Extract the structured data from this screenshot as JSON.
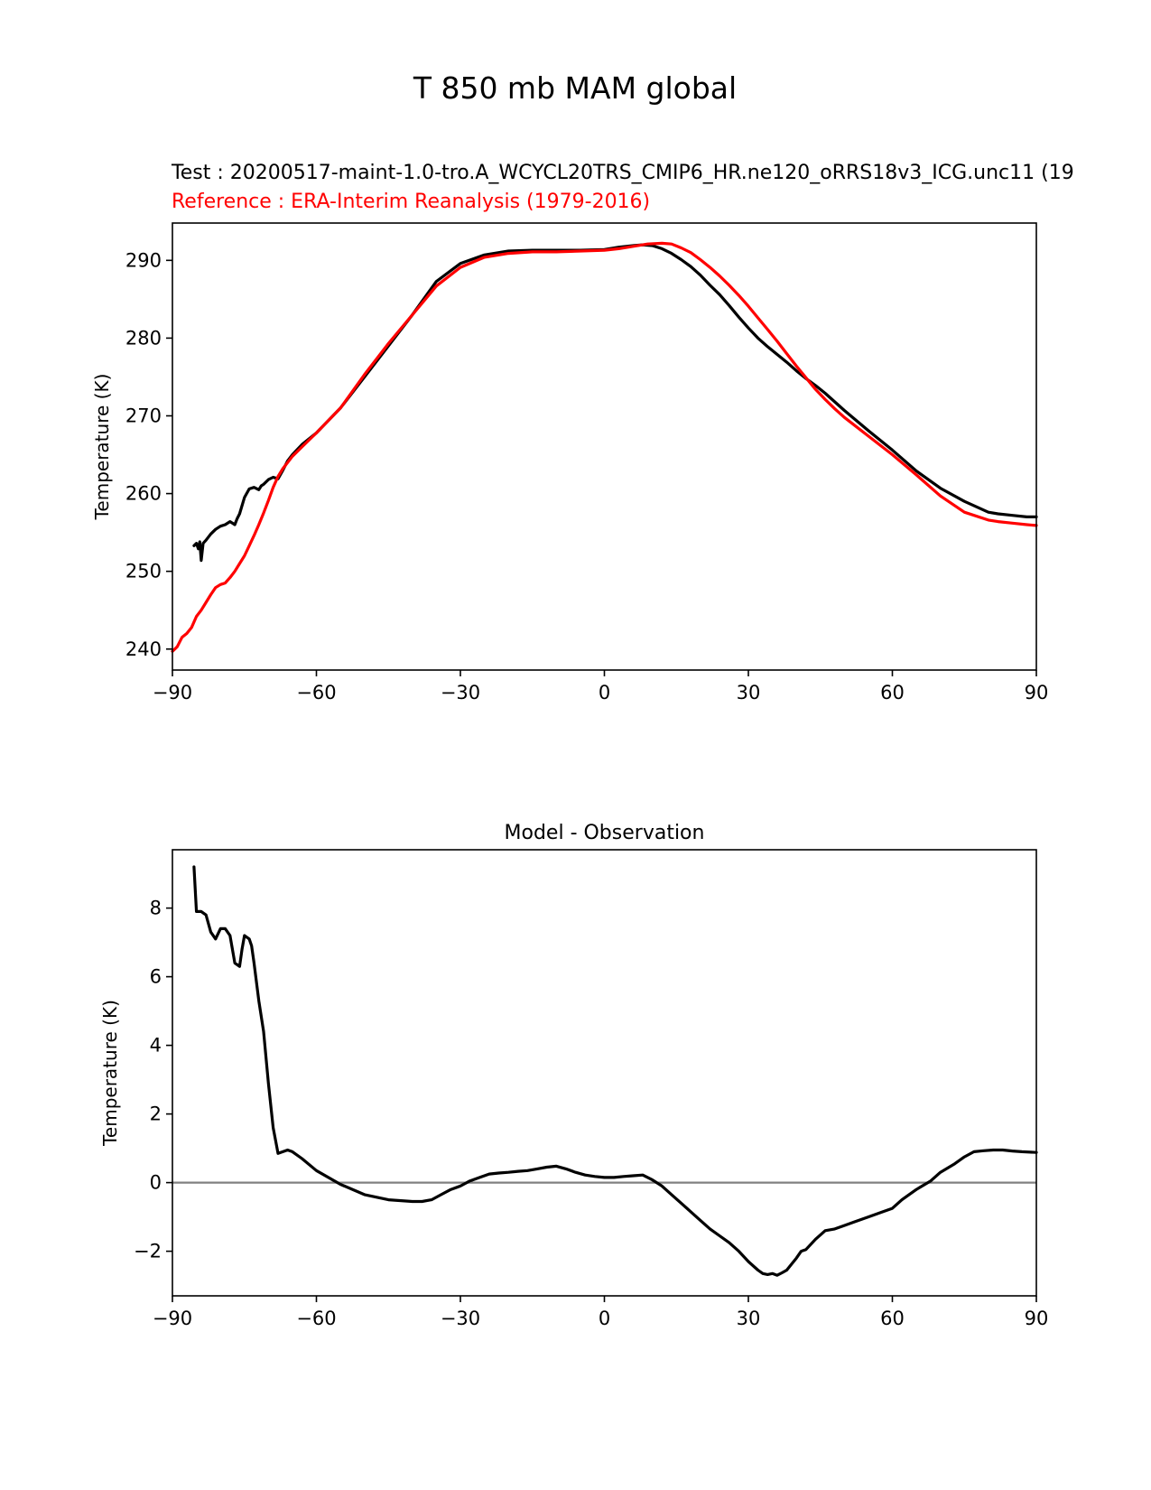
{
  "figure": {
    "title": "T 850 mb MAM global",
    "test_label": "Test : 20200517-maint-1.0-tro.A_WCYCL20TRS_CMIP6_HR.ne120_oRRS18v3_ICG.unc11 (19",
    "reference_label": "Reference : ERA-Interim Reanalysis (1979-2016)",
    "colors": {
      "test": "#000000",
      "reference": "#ff0000",
      "zero_line": "#808080"
    }
  },
  "chart_data": [
    {
      "type": "line",
      "title": "",
      "xlabel": "",
      "ylabel": "Temperature (K)",
      "xlim": [
        -90,
        90
      ],
      "ylim": [
        237.3,
        294.8
      ],
      "xticks": [
        "−90",
        "−60",
        "−30",
        "0",
        "30",
        "60",
        "90"
      ],
      "xtick_values": [
        -90,
        -60,
        -30,
        0,
        30,
        60,
        90
      ],
      "yticks": [
        "240",
        "250",
        "260",
        "270",
        "280",
        "290"
      ],
      "ytick_values": [
        240,
        250,
        260,
        270,
        280,
        290
      ],
      "grid": false,
      "series": [
        {
          "color": "#000000",
          "x": [
            -85.5,
            -85.0,
            -84.6,
            -84.3,
            -84.0,
            -83.6,
            -83.0,
            -82.0,
            -81.0,
            -80.0,
            -79.0,
            -78.0,
            -77.0,
            -76.5,
            -76.0,
            -75.0,
            -74.0,
            -73.0,
            -72.0,
            -71.5,
            -71.0,
            -70.0,
            -69.0,
            -68.0,
            -67.0,
            -66.0,
            -65.0,
            -63.0,
            -60.0,
            -55.0,
            -50.0,
            -45.0,
            -40.0,
            -35.0,
            -30.0,
            -25.0,
            -20.0,
            -15.0,
            -10.0,
            -5.0,
            0.0,
            3.0,
            6.0,
            8.0,
            10.0,
            12.0,
            14.0,
            16.0,
            18.0,
            20.0,
            22.0,
            24.0,
            26.0,
            28.0,
            30.0,
            32.0,
            34.0,
            36.0,
            38.0,
            40.0,
            42.0,
            44.0,
            46.0,
            48.0,
            50.0,
            55.0,
            60.0,
            65.0,
            70.0,
            75.0,
            80.0,
            82.0,
            85.0,
            88.0,
            90.0
          ],
          "y": [
            253.3,
            253.6,
            252.9,
            253.8,
            251.4,
            253.6,
            254.0,
            254.8,
            255.4,
            255.8,
            256.0,
            256.4,
            256.0,
            256.8,
            257.4,
            259.5,
            260.6,
            260.8,
            260.5,
            261.0,
            261.2,
            261.8,
            262.1,
            261.9,
            263.0,
            264.2,
            265.0,
            266.3,
            267.8,
            271.0,
            275.0,
            279.0,
            283.0,
            287.3,
            289.6,
            290.7,
            291.2,
            291.3,
            291.3,
            291.3,
            291.4,
            291.7,
            291.9,
            292.0,
            291.9,
            291.5,
            290.9,
            290.1,
            289.2,
            288.1,
            286.8,
            285.6,
            284.2,
            282.7,
            281.3,
            280.0,
            278.9,
            277.9,
            276.9,
            275.8,
            274.8,
            273.9,
            272.9,
            271.8,
            270.7,
            268.1,
            265.6,
            262.9,
            260.7,
            259.0,
            257.6,
            257.4,
            257.2,
            257.0,
            257.0
          ]
        },
        {
          "color": "#ff0000",
          "x": [
            -90.0,
            -89.0,
            -88.0,
            -87.0,
            -86.0,
            -85.0,
            -84.0,
            -83.0,
            -82.0,
            -81.0,
            -80.0,
            -79.0,
            -78.0,
            -77.0,
            -76.0,
            -75.0,
            -74.0,
            -73.0,
            -72.0,
            -71.0,
            -70.0,
            -69.0,
            -68.0,
            -67.0,
            -66.0,
            -65.0,
            -63.0,
            -60.0,
            -55.0,
            -50.0,
            -45.0,
            -40.0,
            -35.0,
            -30.0,
            -25.0,
            -20.0,
            -15.0,
            -10.0,
            -5.0,
            0.0,
            3.0,
            6.0,
            9.0,
            12.0,
            14.0,
            16.0,
            18.0,
            20.0,
            22.0,
            24.0,
            26.0,
            28.0,
            30.0,
            32.0,
            34.0,
            36.0,
            38.0,
            40.0,
            42.0,
            44.0,
            46.0,
            48.0,
            50.0,
            55.0,
            60.0,
            65.0,
            70.0,
            75.0,
            80.0,
            82.0,
            85.0,
            88.0,
            90.0
          ],
          "y": [
            239.7,
            240.3,
            241.5,
            242.0,
            242.8,
            244.2,
            245.0,
            246.0,
            247.0,
            247.9,
            248.3,
            248.5,
            249.2,
            250.0,
            251.0,
            252.0,
            253.3,
            254.6,
            256.0,
            257.5,
            259.1,
            260.8,
            262.2,
            263.2,
            264.0,
            264.8,
            266.0,
            267.8,
            271.0,
            275.3,
            279.3,
            283.0,
            286.7,
            289.1,
            290.4,
            290.9,
            291.1,
            291.1,
            291.2,
            291.3,
            291.5,
            291.8,
            292.1,
            292.2,
            292.1,
            291.6,
            291.0,
            290.1,
            289.1,
            288.0,
            286.8,
            285.5,
            284.1,
            282.6,
            281.1,
            279.6,
            278.0,
            276.4,
            274.9,
            273.4,
            272.1,
            270.9,
            269.8,
            267.4,
            265.0,
            262.4,
            259.7,
            257.6,
            256.6,
            256.4,
            256.2,
            256.0,
            255.9
          ]
        }
      ]
    },
    {
      "type": "line",
      "title": "Model - Observation",
      "xlabel": "",
      "ylabel": "Temperature (K)",
      "xlim": [
        -90,
        90
      ],
      "ylim": [
        -3.3,
        9.7
      ],
      "xticks": [
        "−90",
        "−60",
        "−30",
        "0",
        "30",
        "60",
        "90"
      ],
      "xtick_values": [
        -90,
        -60,
        -30,
        0,
        30,
        60,
        90
      ],
      "yticks": [
        "−2",
        "0",
        "2",
        "4",
        "6",
        "8"
      ],
      "ytick_values": [
        -2,
        0,
        2,
        4,
        6,
        8
      ],
      "grid": false,
      "zero_line": 0,
      "series": [
        {
          "color": "#000000",
          "x": [
            -85.5,
            -85.0,
            -84.0,
            -83.0,
            -82.0,
            -81.0,
            -80.0,
            -79.0,
            -78.0,
            -77.0,
            -76.0,
            -75.5,
            -75.0,
            -74.0,
            -73.5,
            -73.0,
            -72.0,
            -71.0,
            -70.0,
            -69.0,
            -68.0,
            -67.0,
            -66.0,
            -65.0,
            -63.0,
            -60.0,
            -55.0,
            -50.0,
            -45.0,
            -40.0,
            -38.0,
            -36.0,
            -34.0,
            -32.0,
            -30.0,
            -28.0,
            -26.0,
            -24.0,
            -22.0,
            -20.0,
            -18.0,
            -16.0,
            -14.0,
            -12.0,
            -10.0,
            -8.0,
            -6.0,
            -4.0,
            -2.0,
            0.0,
            2.0,
            4.0,
            6.0,
            8.0,
            10.0,
            12.0,
            14.0,
            16.0,
            18.0,
            20.0,
            22.0,
            24.0,
            26.0,
            28.0,
            30.0,
            32.0,
            33.0,
            34.0,
            35.0,
            36.0,
            37.0,
            38.0,
            40.0,
            41.0,
            42.0,
            44.0,
            46.0,
            48.0,
            50.0,
            52.0,
            55.0,
            58.0,
            60.0,
            62.0,
            65.0,
            68.0,
            70.0,
            73.0,
            75.0,
            77.0,
            79.0,
            81.0,
            83.0,
            85.0,
            87.0,
            90.0
          ],
          "y": [
            9.2,
            7.9,
            7.9,
            7.8,
            7.3,
            7.1,
            7.4,
            7.4,
            7.2,
            6.4,
            6.3,
            6.8,
            7.2,
            7.1,
            6.9,
            6.4,
            5.3,
            4.4,
            2.9,
            1.6,
            0.85,
            0.9,
            0.95,
            0.9,
            0.7,
            0.35,
            -0.05,
            -0.35,
            -0.5,
            -0.55,
            -0.55,
            -0.5,
            -0.35,
            -0.2,
            -0.1,
            0.05,
            0.15,
            0.25,
            0.28,
            0.3,
            0.33,
            0.35,
            0.4,
            0.45,
            0.48,
            0.4,
            0.3,
            0.22,
            0.18,
            0.15,
            0.15,
            0.18,
            0.2,
            0.22,
            0.08,
            -0.1,
            -0.35,
            -0.6,
            -0.85,
            -1.1,
            -1.35,
            -1.55,
            -1.75,
            -2.0,
            -2.3,
            -2.55,
            -2.65,
            -2.68,
            -2.65,
            -2.7,
            -2.63,
            -2.55,
            -2.2,
            -2.0,
            -1.95,
            -1.65,
            -1.4,
            -1.35,
            -1.25,
            -1.15,
            -1.0,
            -0.85,
            -0.75,
            -0.5,
            -0.2,
            0.05,
            0.3,
            0.55,
            0.75,
            0.9,
            0.93,
            0.95,
            0.95,
            0.92,
            0.9,
            0.88
          ]
        }
      ]
    }
  ]
}
